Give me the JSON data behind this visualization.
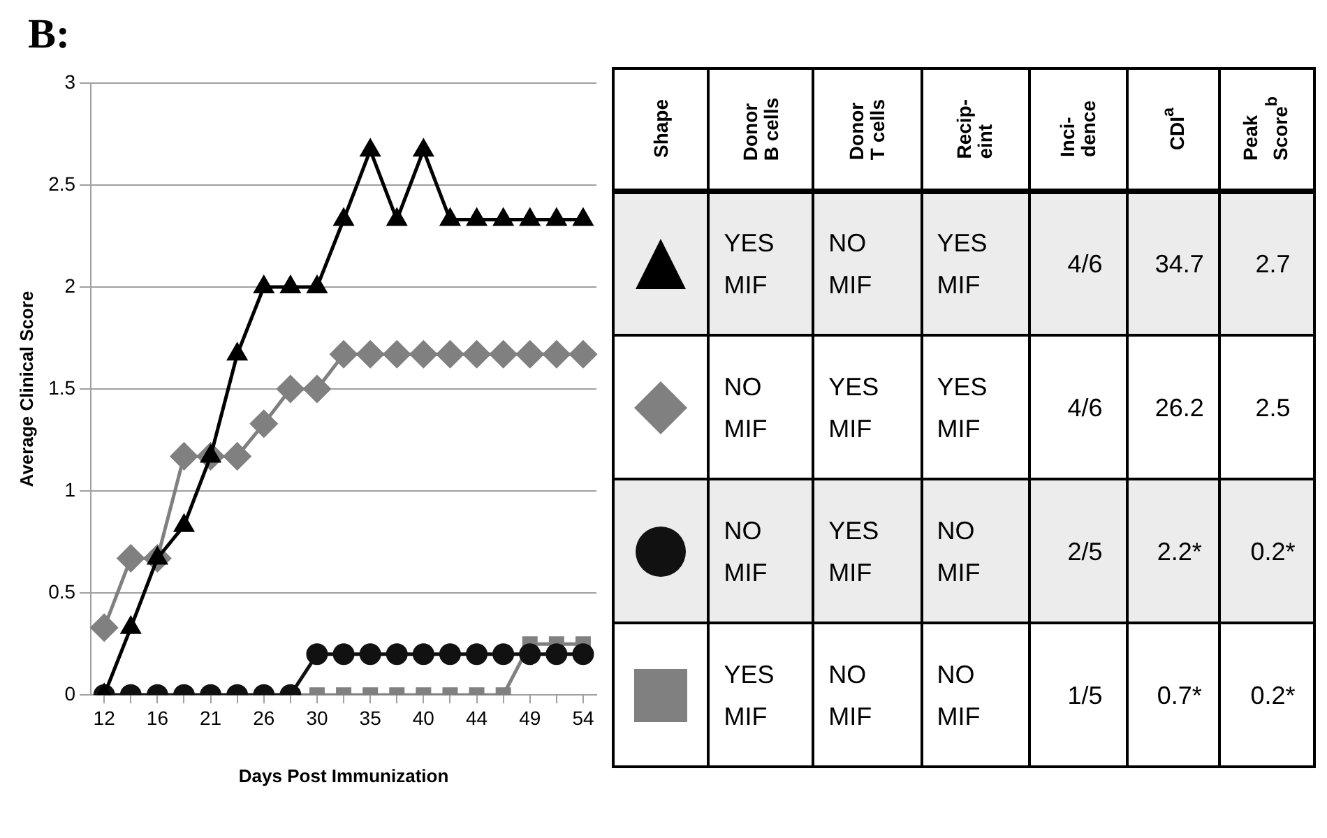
{
  "chart_data": [
    {
      "type": "line",
      "title": "B:",
      "xlabel": "Days Post Immunization",
      "ylabel": "Average Clinical Score",
      "categories": [
        "12",
        null,
        "16",
        null,
        "21",
        null,
        "26",
        null,
        "30",
        null,
        "35",
        null,
        "40",
        null,
        "44",
        null,
        "49",
        null,
        "54"
      ],
      "series": [
        {
          "color": "#000000",
          "marker": "triangle",
          "values": [
            0,
            0.33,
            0.67,
            0.83,
            1.17,
            1.67,
            2,
            2,
            2,
            2.33,
            2.67,
            2.33,
            2.67,
            2.33,
            2.33,
            2.33,
            2.33,
            2.33,
            2.33
          ]
        },
        {
          "color": "#808080",
          "marker": "diamond",
          "values": [
            0.33,
            0.67,
            0.67,
            1.17,
            1.17,
            1.17,
            1.33,
            1.5,
            1.5,
            1.67,
            1.67,
            1.67,
            1.67,
            1.67,
            1.67,
            1.67,
            1.67,
            1.67,
            1.67
          ]
        },
        {
          "color": "#111111",
          "marker": "circle",
          "values": [
            0,
            0,
            0,
            0,
            0,
            0,
            0,
            0,
            0.2,
            0.2,
            0.2,
            0.2,
            0.2,
            0.2,
            0.2,
            0.2,
            0.2,
            0.2,
            0.2
          ]
        },
        {
          "color": "#808080",
          "marker": "square",
          "values": [
            0,
            0,
            0,
            0,
            0,
            0,
            0,
            0,
            0,
            0,
            0,
            0,
            0,
            0,
            0,
            0,
            0.25,
            0.25,
            0.25
          ]
        }
      ],
      "ylim": [
        0,
        3
      ],
      "yticks": [
        0,
        0.5,
        1,
        1.5,
        2,
        2.5,
        3
      ],
      "grid": "y",
      "line_style": "solid"
    },
    {
      "type": "other",
      "annotations": [
        "Shape",
        "Donor\nB cells",
        "Donor\nT cells",
        "Recip-\neint",
        "Inci-\ndence",
        "CDI$^{a}$",
        "Peak\nScore$^{b}$",
        "YES\nMIF",
        "NO\nMIF",
        "YES\nMIF",
        "4/6",
        "34.7",
        "2.7",
        "NO\nMIF",
        "YES\nMIF",
        "YES\nMIF",
        "4/6",
        "26.2",
        "2.5",
        "NO\nMIF",
        "YES\nMIF",
        "NO\nMIF",
        "2/5",
        "2.2*",
        "0.2*",
        "YES\nMIF",
        "NO\nMIF",
        "NO\nMIF",
        "1/5",
        "0.7*",
        "0.2*"
      ]
    }
  ]
}
